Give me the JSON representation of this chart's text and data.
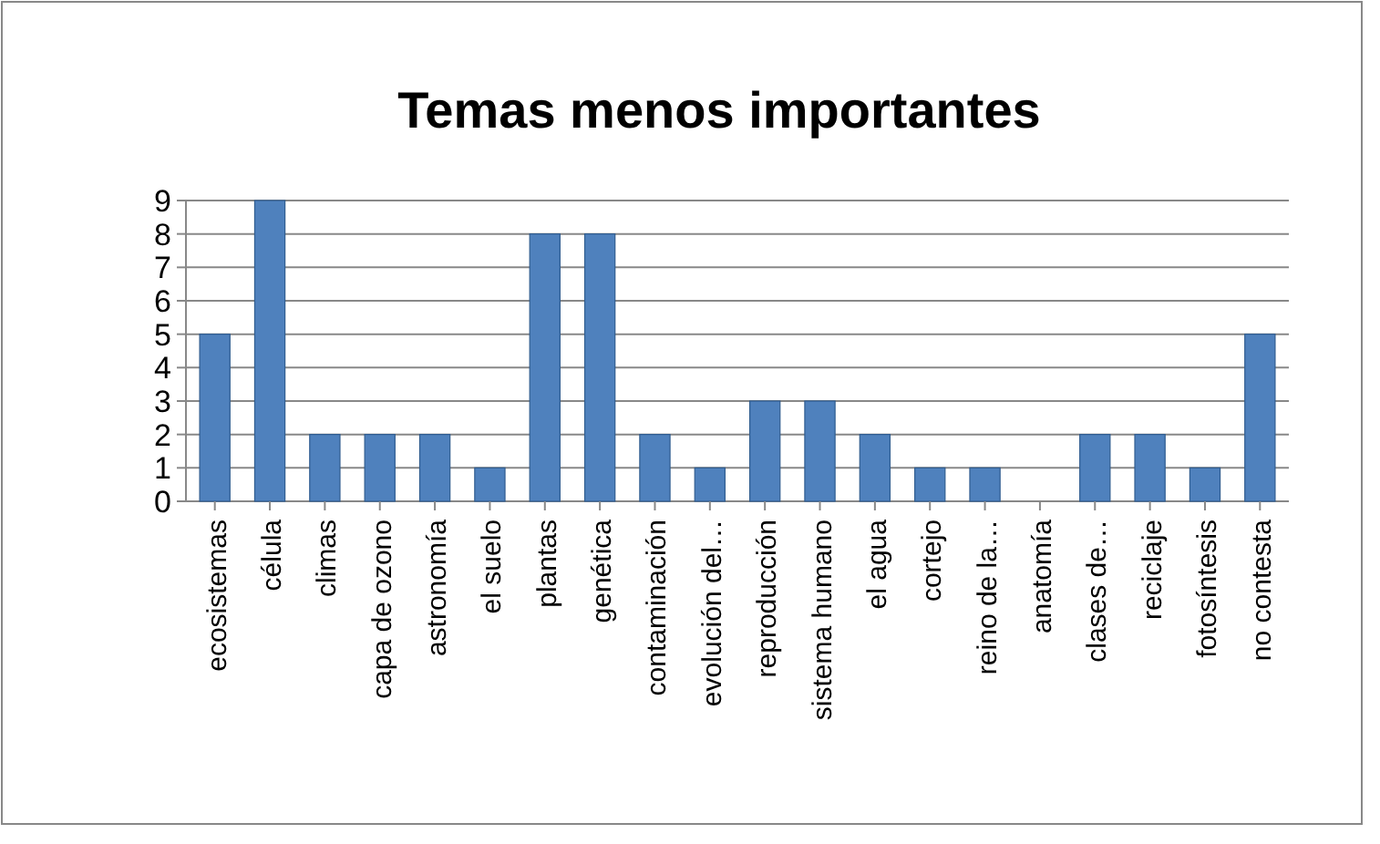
{
  "chart_data": {
    "type": "bar",
    "title": "Temas menos importantes",
    "categories": [
      "ecosistemas",
      "célula",
      "climas",
      "capa de ozono",
      "astronomía",
      "el suelo",
      "plantas",
      "genética",
      "contaminación",
      "evolución del…",
      "reproducción",
      "sistema humano",
      "el agua",
      "cortejo",
      "reino de la…",
      "anatomía",
      "clases de…",
      "reciclaje",
      "fotosíntesis",
      "no contesta"
    ],
    "values": [
      5,
      9,
      2,
      2,
      2,
      1,
      8,
      8,
      2,
      1,
      3,
      3,
      2,
      1,
      1,
      0,
      2,
      2,
      1,
      5
    ],
    "color": "#4f81bd",
    "ylim": [
      0,
      9
    ],
    "yticks": [
      0,
      1,
      2,
      3,
      4,
      5,
      6,
      7,
      8,
      9
    ],
    "grid": "y"
  }
}
